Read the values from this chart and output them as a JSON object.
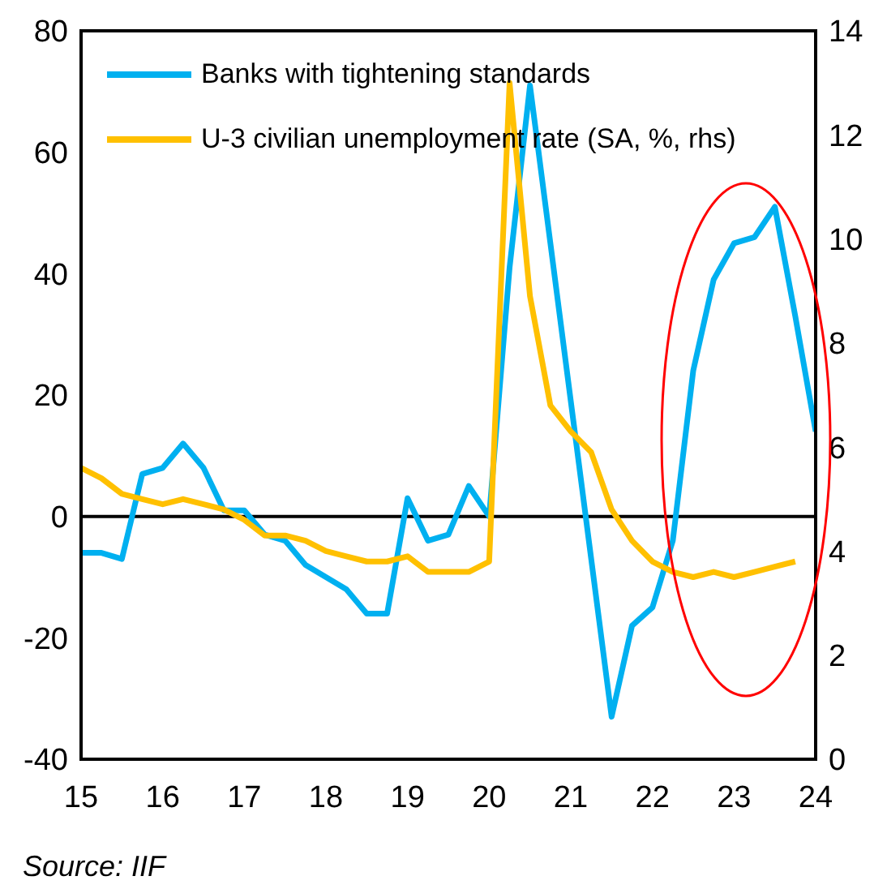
{
  "chart_data": {
    "type": "line",
    "x": [
      15,
      15.25,
      15.5,
      15.75,
      16,
      16.25,
      16.5,
      16.75,
      17,
      17.25,
      17.5,
      17.75,
      18,
      18.25,
      18.5,
      18.75,
      19,
      19.25,
      19.5,
      19.75,
      20,
      20.25,
      20.5,
      20.75,
      21,
      21.25,
      21.5,
      21.75,
      22,
      22.25,
      22.5,
      22.75,
      23,
      23.25,
      23.5,
      23.75,
      24
    ],
    "series": [
      {
        "name": "Banks with tightening standards",
        "color": "#00b0f0",
        "values": [
          -6,
          -6,
          -7,
          7,
          8,
          12,
          8,
          1,
          1,
          -3,
          -4,
          -8,
          -10,
          -12,
          -16,
          -16,
          3,
          -4,
          -3,
          5,
          0,
          41,
          71,
          45,
          19,
          -7,
          -33,
          -18,
          -15,
          -4,
          24,
          39,
          45,
          46,
          51,
          33,
          14
        ]
      },
      {
        "name": "U-3 civilian unemployment rate (SA, %, rhs)",
        "color": "#ffc000",
        "axis": "y2",
        "values": [
          5.6,
          5.4,
          5.1,
          5.0,
          4.9,
          5.0,
          4.9,
          4.8,
          4.6,
          4.3,
          4.3,
          4.2,
          4.0,
          3.9,
          3.8,
          3.8,
          3.9,
          3.6,
          3.6,
          3.6,
          3.8,
          13.0,
          8.9,
          6.8,
          6.3,
          5.9,
          4.8,
          4.2,
          3.8,
          3.6,
          3.5,
          3.6,
          3.5,
          3.6,
          3.7,
          3.8,
          null
        ]
      }
    ],
    "xlim": [
      15,
      24
    ],
    "xticks": [
      15,
      16,
      17,
      18,
      19,
      20,
      21,
      22,
      23,
      24
    ],
    "ylim": [
      -40,
      80
    ],
    "yticks": [
      -40,
      -20,
      0,
      20,
      40,
      60,
      80
    ],
    "y2lim": [
      0,
      14
    ],
    "y2ticks": [
      0,
      2,
      4,
      6,
      8,
      10,
      12,
      14
    ],
    "ref_lines": [
      {
        "axis": "y",
        "value": 0,
        "color": "#000000"
      }
    ],
    "legend": "top left",
    "grid": false,
    "marker": "none",
    "line_style": "solid",
    "annotations": [
      "Source: IIF"
    ]
  }
}
